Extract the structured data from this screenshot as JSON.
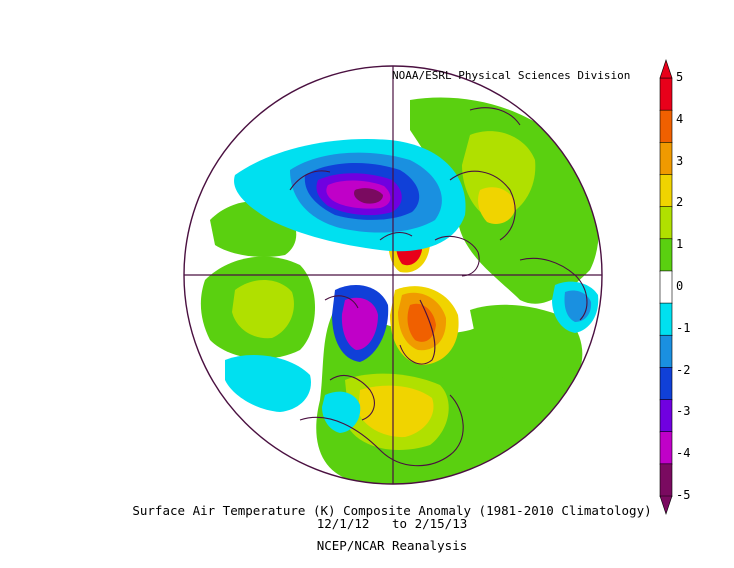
{
  "figure": {
    "credit": "NOAA/ESRL Physical Sciences Division",
    "title": "Surface Air Temperature (K) Composite Anomaly (1981-2010 Climatology)",
    "dates": "12/1/12   to 2/15/13",
    "source": "NCEP/NCAR Reanalysis",
    "projection": "north-polar-stereographic"
  },
  "colorbar": {
    "ticks": [
      "5",
      "4",
      "3",
      "2",
      "1",
      "0",
      "-1",
      "-2",
      "-3",
      "-4",
      "-5"
    ],
    "colors": [
      "#e8001a",
      "#f06000",
      "#f09a00",
      "#f0d400",
      "#b0e000",
      "#5ad010",
      "#ffffff",
      "#00e0f0",
      "#1a90e0",
      "#1040d8",
      "#7000e0",
      "#c000c8",
      "#7a0a60"
    ],
    "min": -5,
    "max": 5
  },
  "colors": {
    "map_edge": "#4a1040",
    "background": "#ffffff"
  }
}
